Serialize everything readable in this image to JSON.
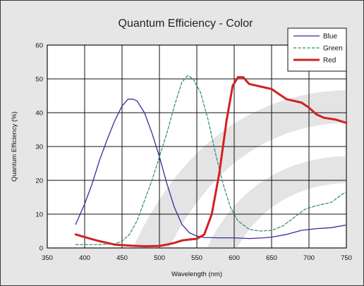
{
  "chart_data": {
    "type": "line",
    "title": "Quantum Efficiency - Color",
    "xlabel": "Wavelength (nm)",
    "ylabel": "Quantum Efficiency (%)",
    "xlim": [
      350,
      750
    ],
    "ylim": [
      0,
      60
    ],
    "xticks": [
      350,
      400,
      450,
      500,
      550,
      600,
      650,
      700,
      750
    ],
    "yticks": [
      0,
      10,
      20,
      30,
      40,
      50,
      60
    ],
    "grid": true,
    "legend_position": "top-right",
    "series": [
      {
        "name": "Blue",
        "color": "#3a2a9a",
        "style": "solid",
        "points": [
          [
            388,
            7
          ],
          [
            400,
            13
          ],
          [
            410,
            19
          ],
          [
            420,
            26
          ],
          [
            430,
            32
          ],
          [
            440,
            37.5
          ],
          [
            450,
            42
          ],
          [
            458,
            44
          ],
          [
            465,
            44
          ],
          [
            470,
            43.5
          ],
          [
            480,
            40
          ],
          [
            490,
            34
          ],
          [
            500,
            27
          ],
          [
            510,
            19
          ],
          [
            520,
            12
          ],
          [
            530,
            7
          ],
          [
            540,
            4.5
          ],
          [
            550,
            3.5
          ],
          [
            560,
            3.1
          ],
          [
            580,
            3
          ],
          [
            600,
            3
          ],
          [
            620,
            2.8
          ],
          [
            640,
            3
          ],
          [
            650,
            3.2
          ],
          [
            670,
            4
          ],
          [
            690,
            5.2
          ],
          [
            710,
            5.7
          ],
          [
            730,
            6
          ],
          [
            750,
            6.8
          ]
        ]
      },
      {
        "name": "Green",
        "color": "#2a8a6a",
        "style": "dashed",
        "points": [
          [
            388,
            1
          ],
          [
            420,
            1
          ],
          [
            440,
            1.2
          ],
          [
            450,
            2
          ],
          [
            460,
            4
          ],
          [
            470,
            8
          ],
          [
            480,
            14
          ],
          [
            490,
            20
          ],
          [
            500,
            27
          ],
          [
            510,
            34
          ],
          [
            520,
            42
          ],
          [
            530,
            49
          ],
          [
            538,
            51
          ],
          [
            545,
            50
          ],
          [
            555,
            46
          ],
          [
            565,
            38
          ],
          [
            575,
            28
          ],
          [
            585,
            19
          ],
          [
            595,
            12
          ],
          [
            605,
            8
          ],
          [
            620,
            5.5
          ],
          [
            635,
            5
          ],
          [
            650,
            5.2
          ],
          [
            665,
            6.5
          ],
          [
            680,
            9
          ],
          [
            695,
            11.5
          ],
          [
            710,
            12.5
          ],
          [
            730,
            13.5
          ],
          [
            745,
            16
          ],
          [
            750,
            16.5
          ]
        ]
      },
      {
        "name": "Red",
        "color": "#d32020",
        "style": "thick",
        "points": [
          [
            388,
            4
          ],
          [
            400,
            3.2
          ],
          [
            420,
            2
          ],
          [
            440,
            1
          ],
          [
            460,
            0.7
          ],
          [
            480,
            0.5
          ],
          [
            500,
            0.6
          ],
          [
            510,
            1
          ],
          [
            520,
            1.5
          ],
          [
            530,
            2.2
          ],
          [
            540,
            2.5
          ],
          [
            550,
            2.7
          ],
          [
            560,
            4
          ],
          [
            570,
            10
          ],
          [
            580,
            22
          ],
          [
            590,
            38
          ],
          [
            598,
            48
          ],
          [
            605,
            50.5
          ],
          [
            612,
            50.5
          ],
          [
            620,
            48.5
          ],
          [
            640,
            47.5
          ],
          [
            650,
            47
          ],
          [
            660,
            45.5
          ],
          [
            670,
            44
          ],
          [
            690,
            43
          ],
          [
            700,
            41.5
          ],
          [
            710,
            39.5
          ],
          [
            720,
            38.5
          ],
          [
            735,
            38
          ],
          [
            750,
            37
          ]
        ]
      }
    ]
  }
}
